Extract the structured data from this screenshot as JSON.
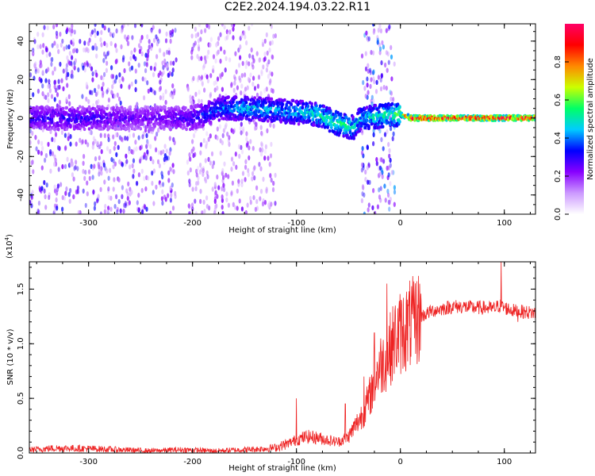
{
  "title": "C2E2.2024.194.03.22.R11",
  "colors": {
    "background": "#ffffff",
    "snr_line": "#ee2222",
    "spectrogram_main": "#7a1ee8",
    "spectrogram_ridge": "#33ee88",
    "spectrogram_hot": "#ff3030"
  },
  "chart_data": [
    {
      "type": "heatmap",
      "title": "C2E2.2024.194.03.22.R11",
      "xlabel": "Height of straight line (km)",
      "ylabel": "Frequency (Hz)",
      "xlim": [
        -357,
        130
      ],
      "ylim": [
        -50,
        49
      ],
      "xticks": [
        -300,
        -200,
        -100,
        0,
        100
      ],
      "yticks": [
        -40,
        -20,
        0,
        20,
        40
      ],
      "colorbar": {
        "label": "Normalized spectral amplitude",
        "range": [
          0.0,
          1.0
        ],
        "ticks": [
          "0.0",
          "0.2",
          "0.4",
          "0.6",
          "0.8"
        ],
        "colormap": [
          "#ffffff",
          "#cc99ff",
          "#8800ff",
          "#0000ff",
          "#00ccff",
          "#00ff66",
          "#ccff00",
          "#ff8800",
          "#ff0000",
          "#ff0066"
        ]
      },
      "ridge": {
        "x": [
          -357,
          -300,
          -250,
          -200,
          -170,
          -150,
          -120,
          -100,
          -80,
          -60,
          -45,
          -38,
          0,
          10,
          50,
          100,
          130
        ],
        "y": [
          0,
          0,
          0,
          0,
          5,
          5,
          4,
          3,
          2,
          -3,
          -5,
          0,
          2,
          0,
          0,
          0,
          0
        ],
        "amplitude": [
          0.3,
          0.3,
          0.25,
          0.3,
          0.4,
          0.45,
          0.45,
          0.45,
          0.5,
          0.55,
          0.5,
          0.45,
          0.6,
          0.95,
          0.95,
          0.95,
          0.9
        ]
      },
      "broadband_regions": [
        {
          "x": [
            -357,
            -215
          ],
          "amplitude": 0.2
        },
        {
          "x": [
            -205,
            -120
          ],
          "amplitude": 0.15
        },
        {
          "x": [
            -37,
            -5
          ],
          "amplitude": 0.25
        }
      ]
    },
    {
      "type": "line",
      "xlabel": "Height of straight line (km)",
      "ylabel": "SNR (10 * v/v)",
      "y_multiplier_label": "(x10",
      "y_multiplier_exponent": "4",
      "xlim": [
        -357,
        130
      ],
      "ylim": [
        0,
        17500
      ],
      "xticks": [
        -300,
        -200,
        -100,
        0,
        100
      ],
      "ytick_values": [
        0,
        5000,
        10000,
        15000
      ],
      "ytick_labels": [
        "0.0",
        "0.5",
        "1.0",
        "1.5"
      ],
      "series": [
        {
          "x": [
            -357,
            -330,
            -300,
            -270,
            -240,
            -210,
            -180,
            -150,
            -130,
            -120,
            -110,
            -100,
            -90,
            -80,
            -70,
            -60,
            -50,
            -40,
            -35,
            -30,
            -25,
            -20,
            -15,
            -10,
            -5,
            0,
            10,
            20,
            30,
            40,
            50,
            60,
            70,
            80,
            90,
            95,
            100,
            110,
            120,
            130
          ],
          "values": [
            300,
            450,
            400,
            300,
            200,
            300,
            200,
            300,
            400,
            500,
            800,
            1200,
            1500,
            1400,
            1200,
            1000,
            1500,
            3000,
            3800,
            5000,
            6500,
            8000,
            8500,
            9500,
            10500,
            11000,
            11800,
            12500,
            13000,
            13200,
            13400,
            13400,
            13300,
            13300,
            13200,
            13500,
            13300,
            13000,
            12900,
            12800
          ],
          "spikes": [
            {
              "x": -100,
              "y": 5000
            },
            {
              "x": -53,
              "y": 4500
            },
            {
              "x": -35,
              "y": 7000
            },
            {
              "x": -25,
              "y": 11000
            },
            {
              "x": -13,
              "y": 15500
            },
            {
              "x": 13,
              "y": 15700
            },
            {
              "x": 97,
              "y": 17500
            },
            {
              "x": 113,
              "y": 12000
            }
          ]
        }
      ]
    }
  ]
}
